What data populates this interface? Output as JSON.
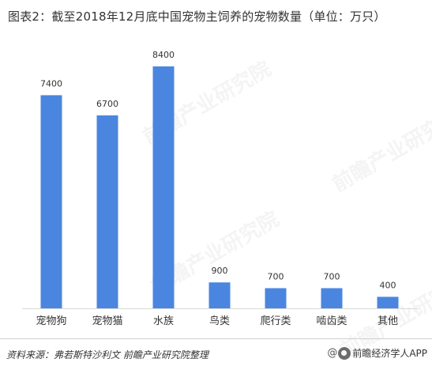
{
  "title": "图表2：截至2018年12月底中国宠物主饲养的宠物数量（单位：万只）",
  "footer": {
    "source": "资料来源：弗若斯特沙利文  前瞻产业研究院整理",
    "brand_at": "@",
    "brand_text": "前瞻经济学人APP",
    "brand_icon": "qianzhan-logo-icon"
  },
  "watermark": {
    "text": "前瞻产业研究院",
    "color": "#999999"
  },
  "colors": {
    "bar": "#4A86E0",
    "axis": "#d9d9d9",
    "label": "#333333"
  },
  "chart_data": {
    "type": "bar",
    "title": "图表2：截至2018年12月底中国宠物主饲养的宠物数量（单位：万只）",
    "xlabel": "",
    "ylabel": "",
    "categories": [
      "宠物狗",
      "宠物猫",
      "水族",
      "鸟类",
      "爬行类",
      "啮齿类",
      "其他"
    ],
    "values": [
      7400,
      6700,
      8400,
      900,
      700,
      700,
      400
    ],
    "value_labels": [
      "7400",
      "6700",
      "8400",
      "900",
      "700",
      "700",
      "400"
    ],
    "ylim": [
      0,
      8400
    ],
    "grid": false,
    "legend": "none"
  }
}
